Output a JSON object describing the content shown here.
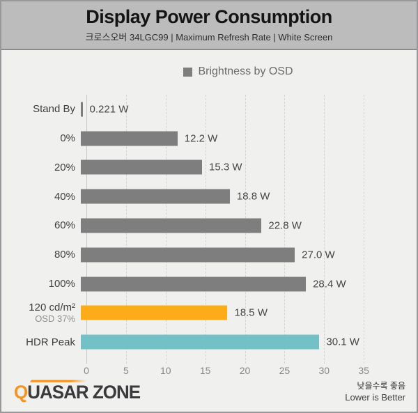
{
  "header": {
    "title": "Display Power Consumption",
    "subtitle": "크로스오버 34LGC99  |  Maximum Refresh Rate  |  White Screen"
  },
  "legend": {
    "label": "Brightness by OSD",
    "marker_color": "#7e7e7e"
  },
  "chart_data": {
    "type": "bar",
    "orientation": "horizontal",
    "title": "Display Power Consumption",
    "unit": "W",
    "grid": true,
    "legend_position": "top",
    "xlim": [
      0,
      38.5
    ],
    "xticks": [
      0,
      5,
      10,
      15,
      20,
      25,
      30,
      35
    ],
    "categories": [
      "Stand By",
      "0%",
      "20%",
      "40%",
      "60%",
      "80%",
      "100%",
      "120 cd/m²",
      "HDR Peak"
    ],
    "sublabels": [
      "",
      "",
      "",
      "",
      "",
      "",
      "",
      "OSD 37%",
      ""
    ],
    "values": [
      0.221,
      12.2,
      15.3,
      18.8,
      22.8,
      27.0,
      28.4,
      18.5,
      30.1
    ],
    "value_labels": [
      "0.221 W",
      "12.2 W",
      "15.3 W",
      "18.8 W",
      "22.8 W",
      "27.0 W",
      "28.4 W",
      "18.5 W",
      "30.1 W"
    ],
    "bar_colors": [
      "#7e7e7e",
      "#7e7e7e",
      "#7e7e7e",
      "#7e7e7e",
      "#7e7e7e",
      "#7e7e7e",
      "#7e7e7e",
      "#fbac18",
      "#73c0c6"
    ]
  },
  "footer": {
    "logo_q": "Q",
    "logo_rest": "UASAR ZONE",
    "note_kr": "낮을수록 좋음",
    "note_en": "Lower is Better"
  },
  "colors": {
    "bar_default": "#7e7e7e",
    "bar_highlight_orange": "#fbac18",
    "bar_highlight_teal": "#73c0c6",
    "header_bg": "#bcbcbc",
    "body_bg": "#f0f0ef",
    "frame_border": "#98989a"
  }
}
